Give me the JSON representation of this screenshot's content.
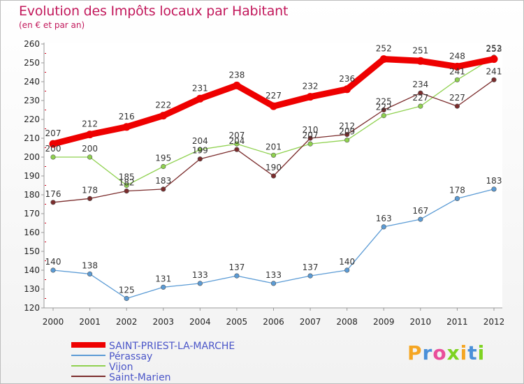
{
  "title": "Evolution des Impôts locaux par Habitant",
  "subtitle": "(en € et par an)",
  "logo": "Proxiti",
  "chart_data": {
    "type": "line",
    "x": [
      "2000",
      "2001",
      "2002",
      "2003",
      "2004",
      "2005",
      "2006",
      "2007",
      "2008",
      "2009",
      "2010",
      "2011",
      "2012"
    ],
    "ylim": [
      120,
      260
    ],
    "yticks": [
      120,
      130,
      140,
      150,
      160,
      170,
      180,
      190,
      200,
      210,
      220,
      230,
      240,
      250,
      260
    ],
    "grid": false,
    "legend": "bottom-left",
    "series": [
      {
        "name": "SAINT-PRIEST-LA-MARCHE",
        "color": "#ee0000",
        "values": [
          207,
          212,
          216,
          222,
          231,
          238,
          227,
          232,
          236,
          252,
          251,
          248,
          252
        ]
      },
      {
        "name": "Pérassay",
        "color": "#5b9bd5",
        "values": [
          140,
          138,
          125,
          131,
          133,
          137,
          133,
          137,
          140,
          163,
          167,
          178,
          183
        ]
      },
      {
        "name": "Vijon",
        "color": "#8fd14f",
        "values": [
          200,
          200,
          185,
          195,
          204,
          207,
          201,
          207,
          209,
          222,
          227,
          241,
          253
        ]
      },
      {
        "name": "Saint-Marien",
        "color": "#7b2c2c",
        "values": [
          176,
          178,
          182,
          183,
          199,
          204,
          190,
          210,
          212,
          225,
          234,
          227,
          241
        ]
      }
    ]
  }
}
